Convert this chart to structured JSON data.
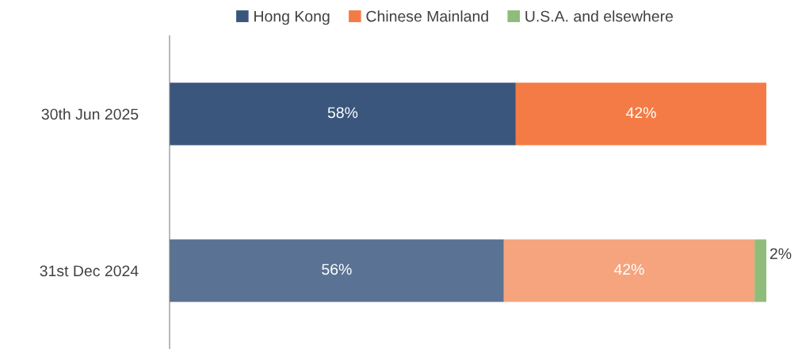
{
  "chart_data": {
    "type": "bar",
    "orientation": "horizontal",
    "stacked": true,
    "xlim": [
      0,
      100
    ],
    "tick_labels": "y",
    "categories": [
      "30th Jun 2025",
      "31st Dec 2024"
    ],
    "series": [
      {
        "name": "Hong Kong",
        "color": "#3a567d",
        "colors": [
          "#3a567d",
          "#5a7293"
        ],
        "values": [
          58,
          56
        ],
        "value_labels": [
          "58%",
          "56%"
        ]
      },
      {
        "name": "Chinese Mainland",
        "color": "#f47b45",
        "colors": [
          "#f47b45",
          "#f5a47e"
        ],
        "values": [
          42,
          42
        ],
        "value_labels": [
          "42%",
          "42%"
        ]
      },
      {
        "name": "U.S.A. and elsewhere",
        "color": "#8fbc7a",
        "values": [
          null,
          2
        ],
        "value_labels": [
          null,
          "2%"
        ]
      }
    ],
    "legend": "top",
    "grid": false
  }
}
